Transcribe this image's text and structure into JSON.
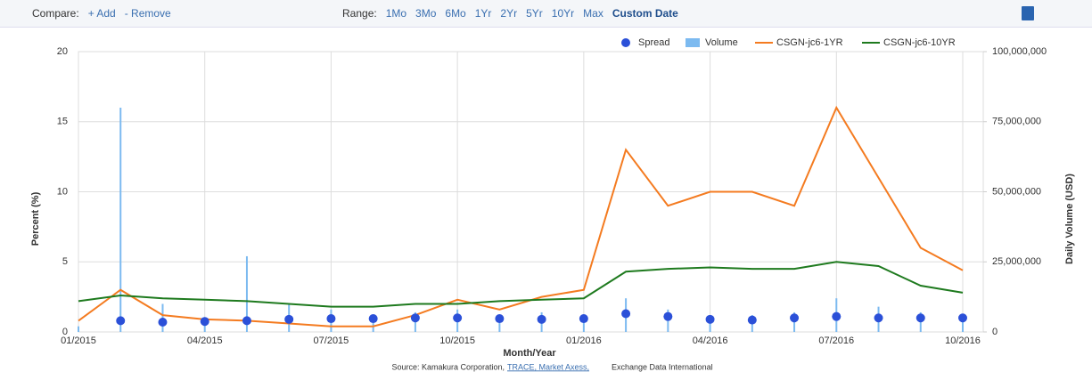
{
  "toolbar": {
    "compare_label": "Compare:",
    "add": "+ Add",
    "remove": "- Remove",
    "range_label": "Range:",
    "ranges": [
      "1Mo",
      "3Mo",
      "6Mo",
      "1Yr",
      "2Yr",
      "5Yr",
      "10Yr",
      "Max"
    ],
    "custom": "Custom Date"
  },
  "chart_data": {
    "type": "combo",
    "ylabel": "Percent (%)",
    "y2label": "Daily Volume (USD)",
    "xlabel": "Month/Year",
    "source": [
      "Source: Kamakura Corporation,",
      "TRACE, Market Axess,",
      "Exchange Data International"
    ],
    "x": [
      "2015-01",
      "2015-02",
      "2015-03",
      "2015-04",
      "2015-05",
      "2015-06",
      "2015-07",
      "2015-08",
      "2015-09",
      "2015-10",
      "2015-11",
      "2015-12",
      "2016-01",
      "2016-02",
      "2016-03",
      "2016-04",
      "2016-05",
      "2016-06",
      "2016-07",
      "2016-08",
      "2016-09",
      "2016-10"
    ],
    "xlim": [
      "2015-01",
      "2016-10"
    ],
    "xticks": [
      {
        "value": "2015-01",
        "label": "01/2015"
      },
      {
        "value": "2015-04",
        "label": "04/2015"
      },
      {
        "value": "2015-07",
        "label": "07/2015"
      },
      {
        "value": "2015-10",
        "label": "10/2015"
      },
      {
        "value": "2016-01",
        "label": "01/2016"
      },
      {
        "value": "2016-04",
        "label": "04/2016"
      },
      {
        "value": "2016-07",
        "label": "07/2016"
      },
      {
        "value": "2016-10",
        "label": "10/2016"
      }
    ],
    "ylim": [
      0,
      20
    ],
    "yticks": [
      0,
      5,
      10,
      15,
      20
    ],
    "y2lim": [
      0,
      100000000
    ],
    "y2ticks": [
      0,
      {
        "value": 25000000,
        "label": "25,000,000"
      },
      {
        "value": 50000000,
        "label": "50,000,000"
      },
      {
        "value": 75000000,
        "label": "75,000,000"
      },
      {
        "value": 100000000,
        "label": "100,000,000"
      }
    ],
    "grid": true,
    "legend": "top-right",
    "series": [
      {
        "name": "Spread",
        "type": "scatter",
        "color": "#2b50d8",
        "values": [
          null,
          0.8,
          0.7,
          0.75,
          0.8,
          0.9,
          0.95,
          0.95,
          1.0,
          1.0,
          0.95,
          0.9,
          0.95,
          1.3,
          1.1,
          0.9,
          0.85,
          1.0,
          1.1,
          1.0,
          1.0,
          1.0
        ]
      },
      {
        "name": "Volume",
        "type": "bar",
        "axis": "y2",
        "color": "#7cbaf0",
        "values": [
          2000000,
          80000000,
          10000000,
          5000000,
          27000000,
          10000000,
          8000000,
          6000000,
          7000000,
          8000000,
          6000000,
          7000000,
          5000000,
          12000000,
          8000000,
          6000000,
          6000000,
          7000000,
          12000000,
          9000000,
          7000000,
          6000000
        ]
      },
      {
        "name": "CSGN-jc6-1YR",
        "type": "line",
        "color": "#f47b20",
        "values": [
          0.8,
          3.0,
          1.2,
          0.9,
          0.8,
          0.6,
          0.4,
          0.4,
          1.2,
          2.3,
          1.6,
          2.5,
          3.0,
          13,
          9,
          10,
          10,
          9,
          16,
          11,
          6,
          4.4
        ]
      },
      {
        "name": "CSGN-jc6-10YR",
        "type": "line",
        "color": "#1e7a1e",
        "values": [
          2.2,
          2.6,
          2.4,
          2.3,
          2.2,
          2.0,
          1.8,
          1.8,
          2.0,
          2.0,
          2.2,
          2.3,
          2.4,
          4.3,
          4.5,
          4.6,
          4.5,
          4.5,
          5.0,
          4.7,
          3.3,
          2.8
        ]
      }
    ]
  }
}
